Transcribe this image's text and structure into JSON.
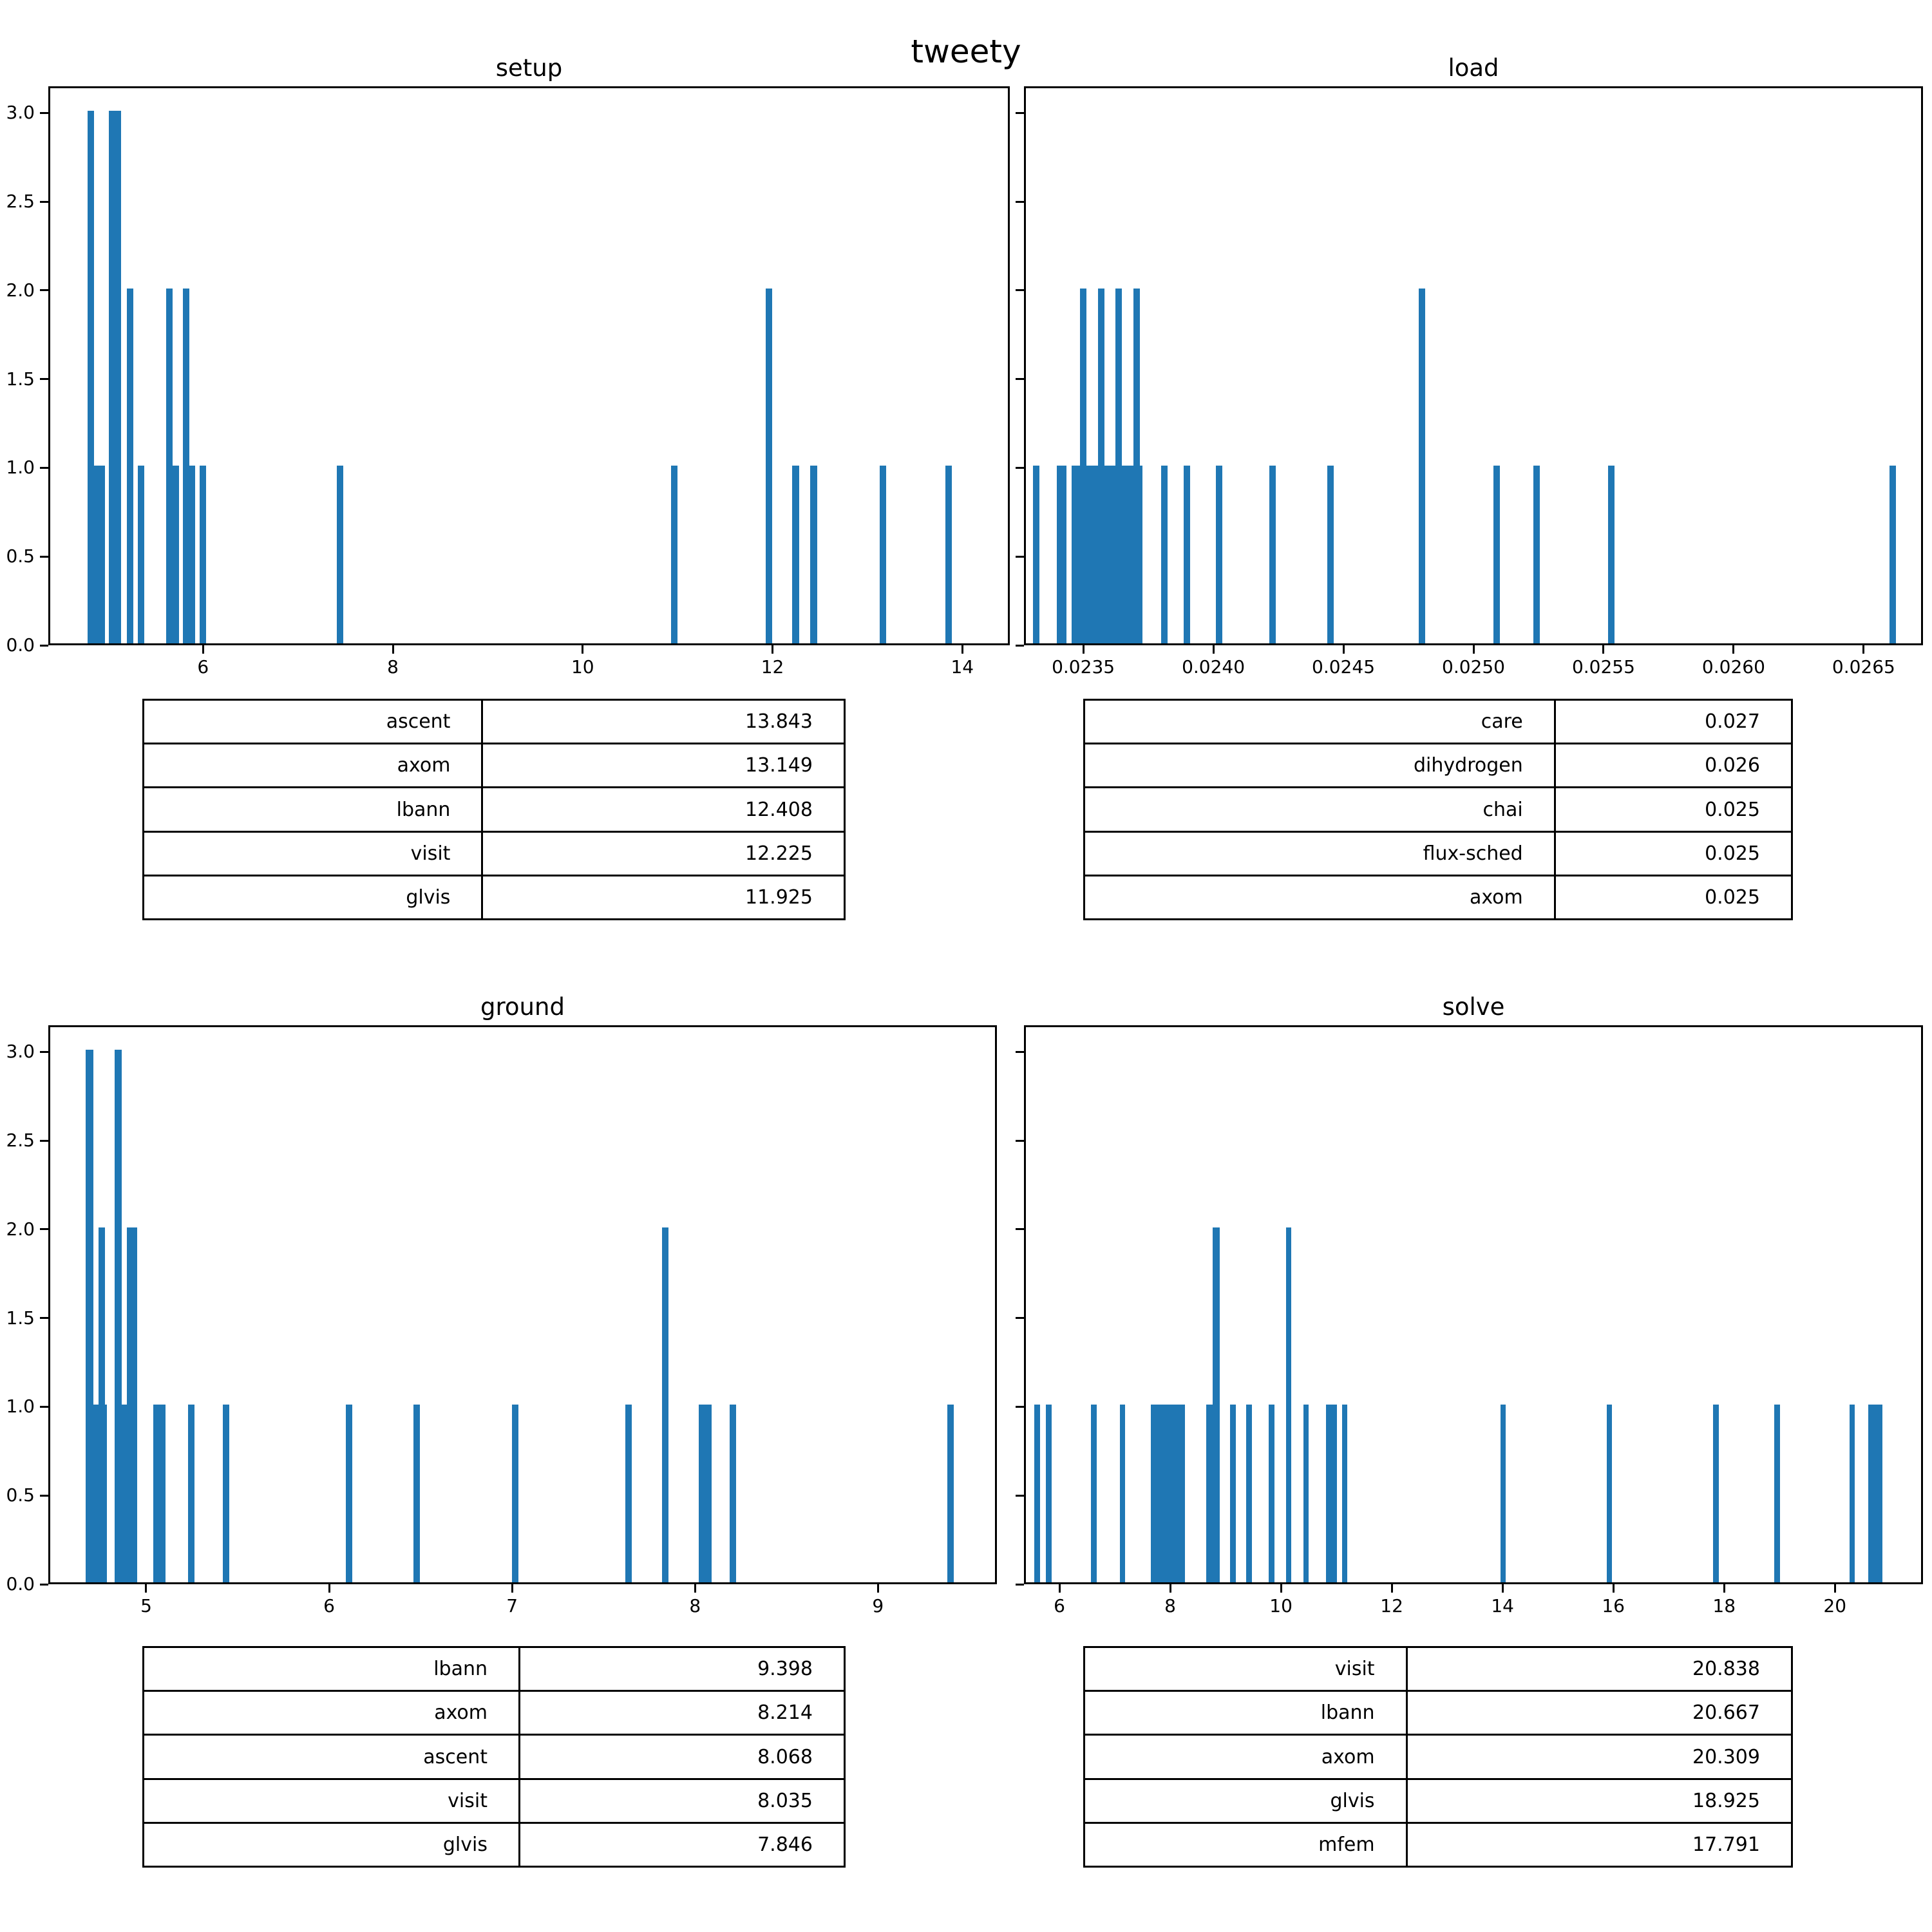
{
  "figure": {
    "suptitle": "tweety",
    "bar_color": "#1f77b4",
    "background": "#ffffff",
    "text_color": "#000000"
  },
  "chart_data": [
    {
      "type": "bar",
      "title": "setup",
      "xlabel": "",
      "ylabel": "",
      "xlim": [
        4.37,
        14.5
      ],
      "ylim": [
        0,
        3.15
      ],
      "grid": false,
      "legend": "none",
      "xticks": [
        6,
        8,
        10,
        12,
        14
      ],
      "xtick_labels": [
        "6",
        "8",
        "10",
        "12",
        "14"
      ],
      "yticks": [
        0.0,
        0.5,
        1.0,
        1.5,
        2.0,
        2.5,
        3.0
      ],
      "ytick_labels": [
        "0.0",
        "0.5",
        "1.0",
        "1.5",
        "2.0",
        "2.5",
        "3.0"
      ],
      "show_ytick_labels": true,
      "default_bar_width": 0.068,
      "bars": [
        {
          "x": 4.786,
          "count": 3
        },
        {
          "x": 4.854,
          "count": 1,
          "w": 0.11
        },
        {
          "x": 5.01,
          "count": 3,
          "w": 0.13
        },
        {
          "x": 5.2,
          "count": 2
        },
        {
          "x": 5.315,
          "count": 1
        },
        {
          "x": 5.613,
          "count": 2
        },
        {
          "x": 5.681,
          "count": 1
        },
        {
          "x": 5.79,
          "count": 2
        },
        {
          "x": 5.851,
          "count": 1
        },
        {
          "x": 5.966,
          "count": 1
        },
        {
          "x": 7.41,
          "count": 1
        },
        {
          "x": 10.93,
          "count": 1
        },
        {
          "x": 11.93,
          "count": 2
        },
        {
          "x": 12.21,
          "count": 1
        },
        {
          "x": 12.4,
          "count": 1
        },
        {
          "x": 13.13,
          "count": 1
        },
        {
          "x": 13.82,
          "count": 1
        }
      ],
      "table": {
        "rows": [
          {
            "name": "ascent",
            "value": "13.843"
          },
          {
            "name": "axom",
            "value": "13.149"
          },
          {
            "name": "lbann",
            "value": "12.408"
          },
          {
            "name": "visit",
            "value": "12.225"
          },
          {
            "name": "glvis",
            "value": "11.925"
          }
        ]
      }
    },
    {
      "type": "bar",
      "title": "load",
      "xlabel": "",
      "ylabel": "",
      "xlim": [
        0.023272,
        0.026728
      ],
      "ylim": [
        0,
        3.15
      ],
      "grid": false,
      "legend": "none",
      "xticks": [
        0.0235,
        0.024,
        0.0245,
        0.025,
        0.0255,
        0.026,
        0.0265
      ],
      "xtick_labels": [
        "0.0235",
        "0.0240",
        "0.0245",
        "0.0250",
        "0.0255",
        "0.0260",
        "0.0265"
      ],
      "yticks": [
        0.0,
        0.5,
        1.0,
        1.5,
        2.0,
        2.5,
        3.0
      ],
      "ytick_labels": [
        "0.0",
        "0.5",
        "1.0",
        "1.5",
        "2.0",
        "2.5",
        "3.0"
      ],
      "show_ytick_labels": false,
      "default_bar_width": 2.5e-05,
      "bars": [
        {
          "x": 0.023307,
          "count": 1
        },
        {
          "x": 0.023399,
          "count": 1,
          "w": 3.7e-05
        },
        {
          "x": 0.023455,
          "count": 1,
          "w": 0.000272
        },
        {
          "x": 0.023488,
          "count": 2
        },
        {
          "x": 0.023557,
          "count": 2
        },
        {
          "x": 0.023624,
          "count": 2
        },
        {
          "x": 0.023693,
          "count": 2
        },
        {
          "x": 0.023799,
          "count": 1
        },
        {
          "x": 0.023886,
          "count": 1
        },
        {
          "x": 0.02401,
          "count": 1
        },
        {
          "x": 0.024215,
          "count": 1
        },
        {
          "x": 0.024438,
          "count": 1
        },
        {
          "x": 0.02479,
          "count": 2
        },
        {
          "x": 0.025077,
          "count": 1
        },
        {
          "x": 0.02523,
          "count": 1
        },
        {
          "x": 0.025517,
          "count": 1
        },
        {
          "x": 0.026599,
          "count": 1
        }
      ],
      "table": {
        "rows": [
          {
            "name": "care",
            "value": "0.027"
          },
          {
            "name": "dihydrogen",
            "value": "0.026"
          },
          {
            "name": "chai",
            "value": "0.025"
          },
          {
            "name": "flux-sched",
            "value": "0.025"
          },
          {
            "name": "axom",
            "value": "0.025"
          }
        ]
      }
    },
    {
      "type": "bar",
      "title": "ground",
      "xlabel": "",
      "ylabel": "",
      "xlim": [
        4.465,
        9.65
      ],
      "ylim": [
        0,
        3.15
      ],
      "grid": false,
      "legend": "none",
      "xticks": [
        5,
        6,
        7,
        8,
        9
      ],
      "xtick_labels": [
        "5",
        "6",
        "7",
        "8",
        "9"
      ],
      "yticks": [
        0.0,
        0.5,
        1.0,
        1.5,
        2.0,
        2.5,
        3.0
      ],
      "ytick_labels": [
        "0.0",
        "0.5",
        "1.0",
        "1.5",
        "2.0",
        "2.5",
        "3.0"
      ],
      "show_ytick_labels": true,
      "default_bar_width": 0.035,
      "bars": [
        {
          "x": 4.67,
          "count": 3,
          "w": 0.04
        },
        {
          "x": 4.71,
          "count": 1,
          "w": 0.075
        },
        {
          "x": 4.74,
          "count": 2,
          "w": 0.035
        },
        {
          "x": 4.828,
          "count": 3,
          "w": 0.04
        },
        {
          "x": 4.868,
          "count": 1,
          "w": 0.025
        },
        {
          "x": 4.893,
          "count": 2,
          "w": 0.057
        },
        {
          "x": 5.04,
          "count": 1,
          "w": 0.065
        },
        {
          "x": 5.23,
          "count": 1
        },
        {
          "x": 5.42,
          "count": 1
        },
        {
          "x": 6.09,
          "count": 1
        },
        {
          "x": 6.46,
          "count": 1
        },
        {
          "x": 7.0,
          "count": 1
        },
        {
          "x": 7.62,
          "count": 1
        },
        {
          "x": 7.82,
          "count": 2
        },
        {
          "x": 8.02,
          "count": 1,
          "w": 0.07
        },
        {
          "x": 8.19,
          "count": 1
        },
        {
          "x": 9.38,
          "count": 1
        }
      ],
      "table": {
        "rows": [
          {
            "name": "lbann",
            "value": "9.398"
          },
          {
            "name": "axom",
            "value": "8.214"
          },
          {
            "name": "ascent",
            "value": "8.068"
          },
          {
            "name": "visit",
            "value": "8.035"
          },
          {
            "name": "glvis",
            "value": "7.846"
          }
        ]
      }
    },
    {
      "type": "bar",
      "title": "solve",
      "xlabel": "",
      "ylabel": "",
      "xlim": [
        5.36,
        21.59
      ],
      "ylim": [
        0,
        3.15
      ],
      "grid": false,
      "legend": "none",
      "xticks": [
        6,
        8,
        10,
        12,
        14,
        16,
        18,
        20
      ],
      "xtick_labels": [
        "6",
        "8",
        "10",
        "12",
        "14",
        "16",
        "18",
        "20"
      ],
      "yticks": [
        0.0,
        0.5,
        1.0,
        1.5,
        2.0,
        2.5,
        3.0
      ],
      "ytick_labels": [
        "0.0",
        "0.5",
        "1.0",
        "1.5",
        "2.0",
        "2.5",
        "3.0"
      ],
      "show_ytick_labels": false,
      "default_bar_width": 0.1,
      "bars": [
        {
          "x": 5.55,
          "count": 1
        },
        {
          "x": 5.76,
          "count": 1
        },
        {
          "x": 6.57,
          "count": 1
        },
        {
          "x": 7.09,
          "count": 1
        },
        {
          "x": 7.65,
          "count": 1,
          "w": 0.62
        },
        {
          "x": 8.65,
          "count": 1,
          "w": 0.12
        },
        {
          "x": 8.77,
          "count": 2,
          "w": 0.12
        },
        {
          "x": 9.08,
          "count": 1
        },
        {
          "x": 9.37,
          "count": 1
        },
        {
          "x": 9.78,
          "count": 1
        },
        {
          "x": 10.09,
          "count": 2
        },
        {
          "x": 10.4,
          "count": 1
        },
        {
          "x": 10.81,
          "count": 1,
          "w": 0.2
        },
        {
          "x": 11.1,
          "count": 1
        },
        {
          "x": 13.96,
          "count": 1
        },
        {
          "x": 15.88,
          "count": 1
        },
        {
          "x": 17.8,
          "count": 1
        },
        {
          "x": 18.91,
          "count": 1
        },
        {
          "x": 20.26,
          "count": 1
        },
        {
          "x": 20.6,
          "count": 1,
          "w": 0.26
        }
      ],
      "table": {
        "rows": [
          {
            "name": "visit",
            "value": "20.838"
          },
          {
            "name": "lbann",
            "value": "20.667"
          },
          {
            "name": "axom",
            "value": "20.309"
          },
          {
            "name": "glvis",
            "value": "18.925"
          },
          {
            "name": "mfem",
            "value": "17.791"
          }
        ]
      }
    }
  ]
}
